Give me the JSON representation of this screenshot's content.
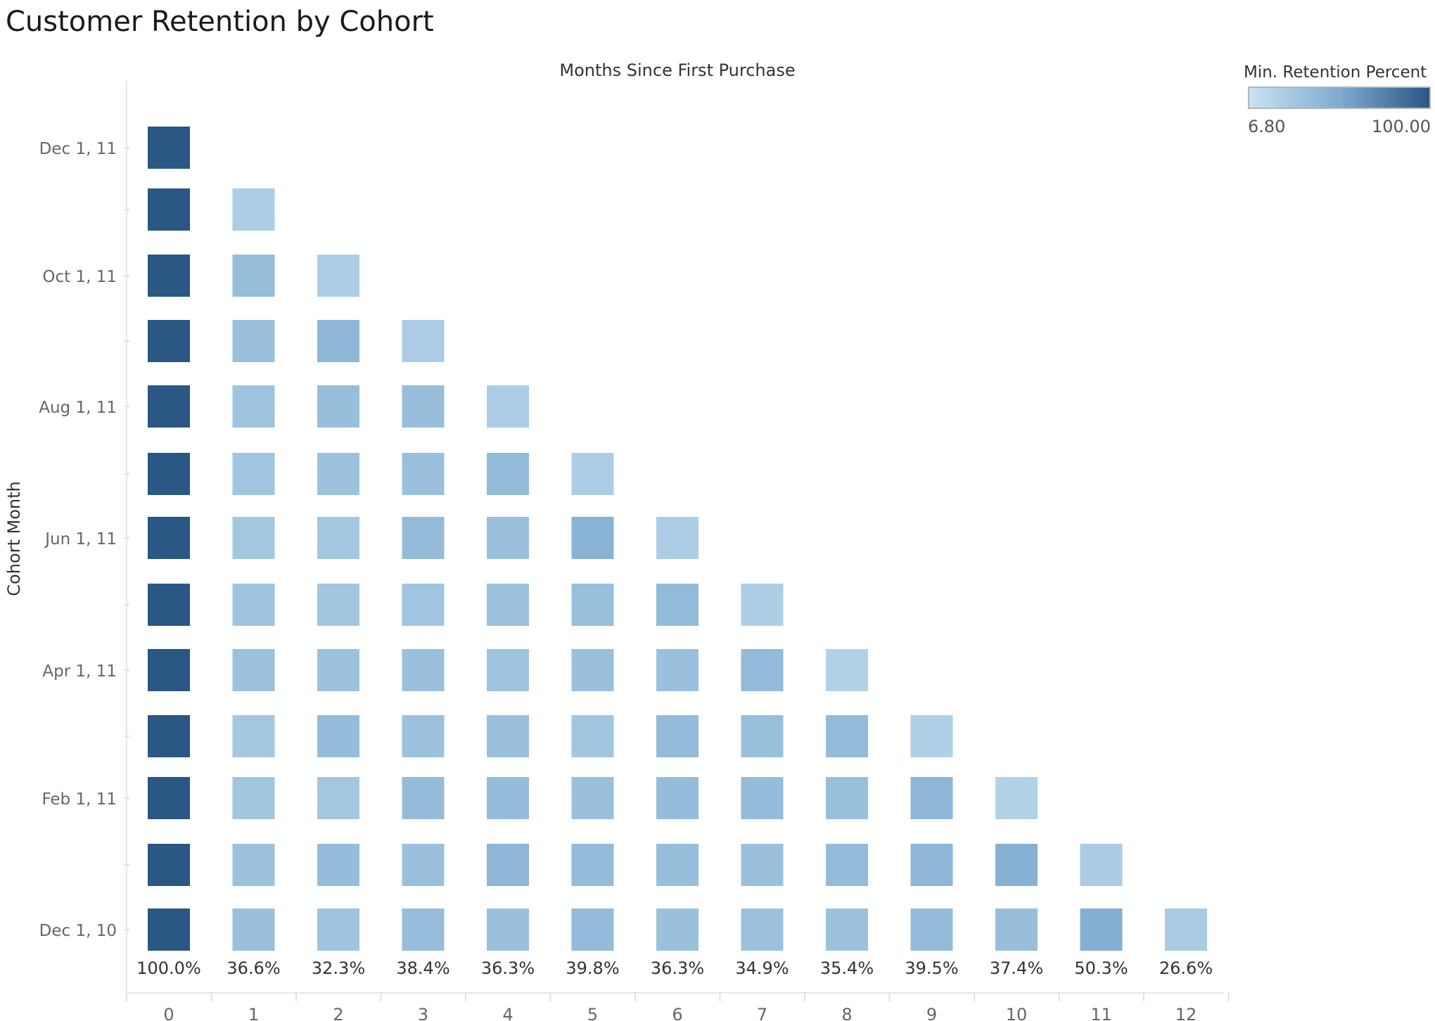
{
  "chart_data": {
    "type": "heatmap",
    "title": "Customer Retention by Cohort",
    "xlabel": "Months Since First Purchase",
    "ylabel": "Cohort Month",
    "x": [
      0,
      1,
      2,
      3,
      4,
      5,
      6,
      7,
      8,
      9,
      10,
      11,
      12
    ],
    "y_tick_labels": [
      "Dec 1, 11",
      "",
      "Oct 1, 11",
      "",
      "Aug 1, 11",
      "",
      "Jun 1, 11",
      "",
      "Apr 1, 11",
      "",
      "Feb 1, 11",
      "",
      "Dec 1, 10"
    ],
    "rows": [
      {
        "cohort_index": 0,
        "values": [
          100
        ]
      },
      {
        "cohort_index": 1,
        "values": [
          100,
          25
        ]
      },
      {
        "cohort_index": 2,
        "values": [
          100,
          38,
          25
        ]
      },
      {
        "cohort_index": 3,
        "values": [
          100,
          36,
          44,
          25
        ]
      },
      {
        "cohort_index": 4,
        "values": [
          100,
          33,
          38,
          38,
          25
        ]
      },
      {
        "cohort_index": 5,
        "values": [
          100,
          32,
          34,
          36,
          41,
          25
        ]
      },
      {
        "cohort_index": 6,
        "values": [
          100,
          30,
          30,
          40,
          36,
          47,
          25
        ]
      },
      {
        "cohort_index": 7,
        "values": [
          100,
          33,
          31,
          32,
          35,
          37,
          41,
          24
        ]
      },
      {
        "cohort_index": 8,
        "values": [
          100,
          35,
          34,
          36,
          33,
          36,
          36,
          40,
          22
        ]
      },
      {
        "cohort_index": 9,
        "values": [
          100,
          29,
          39,
          35,
          36,
          31,
          40,
          37,
          40,
          23
        ]
      },
      {
        "cohort_index": 10,
        "values": [
          100,
          31,
          30,
          40,
          39,
          36,
          39,
          39,
          37,
          44,
          21
        ]
      },
      {
        "cohort_index": 11,
        "values": [
          100,
          35,
          39,
          36,
          44,
          40,
          38,
          36,
          40,
          44,
          48,
          26
        ]
      },
      {
        "cohort_index": 12,
        "values": [
          100,
          36.6,
          32.3,
          38.4,
          36.3,
          39.8,
          36.3,
          34.9,
          35.4,
          39.5,
          37.4,
          50.3,
          26.6
        ]
      }
    ],
    "column_labels": [
      "100.0%",
      "36.6%",
      "32.3%",
      "38.4%",
      "36.3%",
      "39.8%",
      "36.3%",
      "34.9%",
      "35.4%",
      "39.5%",
      "37.4%",
      "50.3%",
      "26.6%"
    ],
    "color_scale": {
      "title": "Min. Retention Percent",
      "min": 6.8,
      "max": 100,
      "min_label": "6.80",
      "max_label": "100.00",
      "min_color": "#c9e3f2",
      "max_color": "#2a5783"
    },
    "grid": false,
    "legend_position": "top-right"
  }
}
